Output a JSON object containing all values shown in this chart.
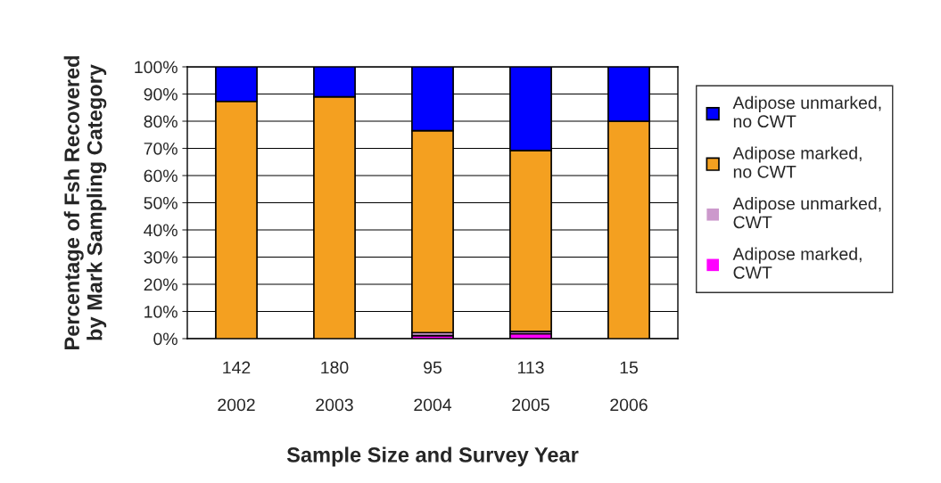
{
  "chart_data": {
    "type": "bar",
    "stacked": true,
    "xlabel": "Sample Size and Survey Year",
    "ylabel": "Percentage of Fsh Recovered\nby Mark Sampling Category",
    "categories": [
      "142\n\n2002",
      "180\n\n2003",
      "95\n\n2004",
      "113\n\n2005",
      "15\n\n2006"
    ],
    "series": [
      {
        "name": "Adipose marked,\nCWT",
        "color": "#ff00ff",
        "values": [
          0,
          0,
          1.1,
          1.8,
          0
        ]
      },
      {
        "name": "Adipose unmarked,\nCWT",
        "color": "#cc99cc",
        "values": [
          0,
          0,
          1.1,
          0.9,
          0
        ]
      },
      {
        "name": "Adipose marked,\nno CWT",
        "color": "#f4a020",
        "values": [
          87.3,
          89,
          74.3,
          66.5,
          80
        ]
      },
      {
        "name": "Adipose unmarked,\nno CWT",
        "color": "#0000ff",
        "values": [
          12.7,
          11,
          23.5,
          30.8,
          20
        ]
      }
    ],
    "ylim": [
      0,
      100
    ],
    "yticks": [
      {
        "value": 0,
        "label": "0%"
      },
      {
        "value": 10,
        "label": "10%"
      },
      {
        "value": 20,
        "label": "20%"
      },
      {
        "value": 30,
        "label": "30%"
      },
      {
        "value": 40,
        "label": "40%"
      },
      {
        "value": 50,
        "label": "50%"
      },
      {
        "value": 60,
        "label": "60%"
      },
      {
        "value": 70,
        "label": "70%"
      },
      {
        "value": 80,
        "label": "80%"
      },
      {
        "value": 90,
        "label": "90%"
      },
      {
        "value": 100,
        "label": "100%"
      }
    ],
    "grid": "y",
    "legend": "right"
  }
}
